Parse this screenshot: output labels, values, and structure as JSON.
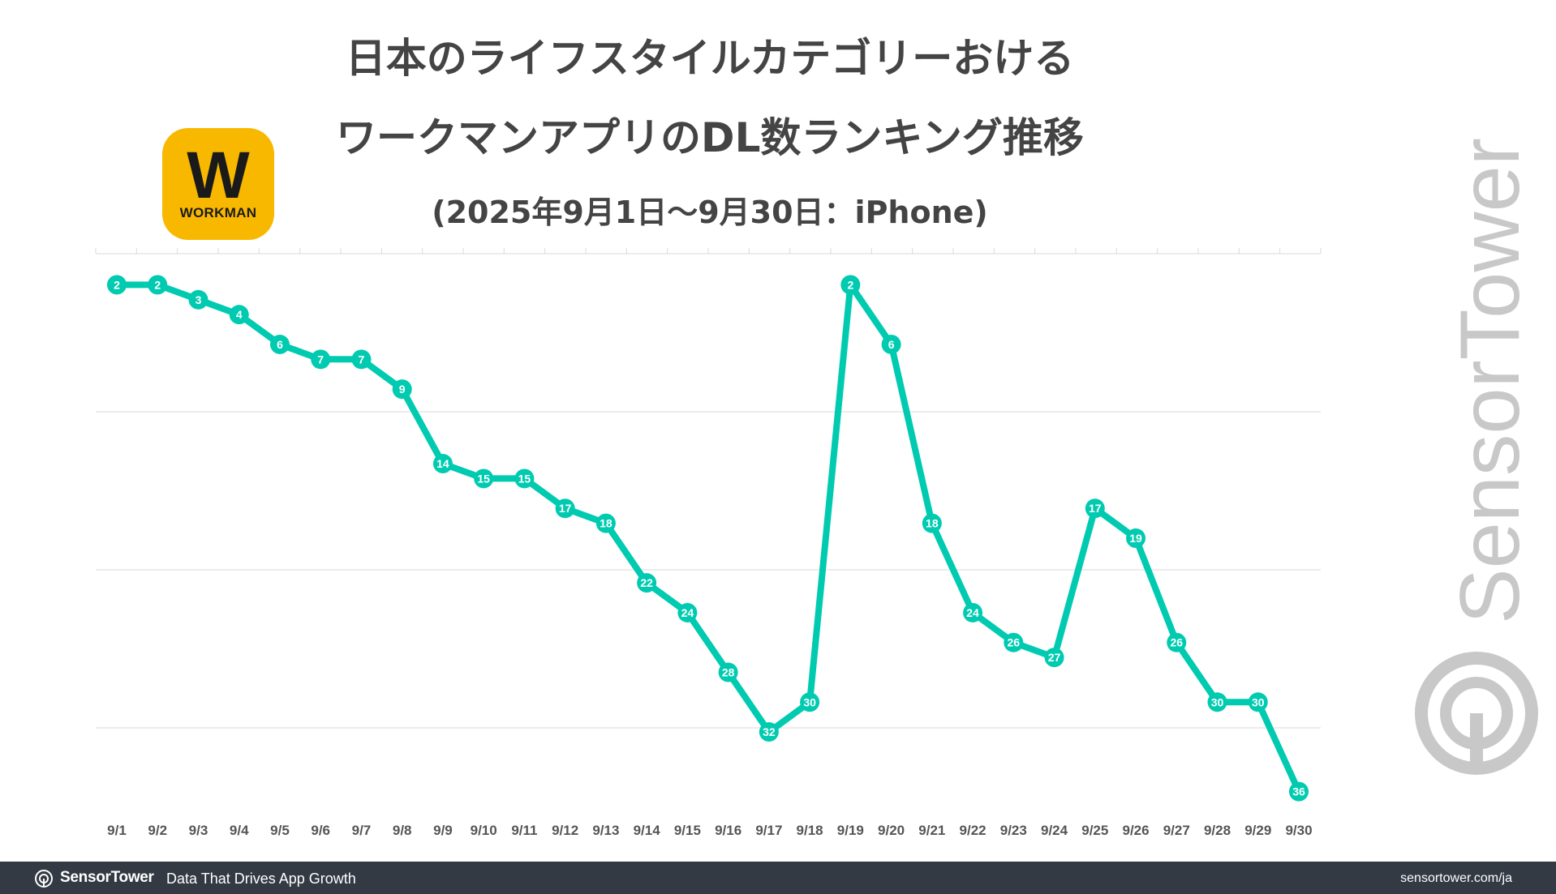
{
  "header": {
    "title_line1": "日本のライフスタイルカテゴリーおける",
    "title_line2": "ワークマンアプリのDL数ランキング推移",
    "subtitle": "(2025年9月1日〜9月30日：iPhone)"
  },
  "logo": {
    "main": "W",
    "text": "WORKMAN",
    "bg_color": "#f9b800"
  },
  "watermark": {
    "text": "SensorTower",
    "color": "#c8c8c8"
  },
  "footer": {
    "brand": "SensorTower",
    "tagline": "Data That Drives App Growth",
    "url": "sensortower.com/ja"
  },
  "chart_data": {
    "type": "line",
    "title": "",
    "xlabel": "",
    "ylabel": "",
    "categories": [
      "9/1",
      "9/2",
      "9/3",
      "9/4",
      "9/5",
      "9/6",
      "9/7",
      "9/8",
      "9/9",
      "9/10",
      "9/11",
      "9/12",
      "9/13",
      "9/14",
      "9/15",
      "9/16",
      "9/17",
      "9/18",
      "9/19",
      "9/20",
      "9/21",
      "9/22",
      "9/23",
      "9/24",
      "9/25",
      "9/26",
      "9/27",
      "9/28",
      "9/29",
      "9/30"
    ],
    "series": [
      {
        "values": [
          2,
          2,
          3,
          4,
          6,
          7,
          7,
          9,
          14,
          15,
          15,
          17,
          18,
          22,
          24,
          28,
          32,
          30,
          2,
          6,
          18,
          24,
          26,
          27,
          17,
          19,
          26,
          30,
          30,
          36
        ]
      }
    ],
    "ylim": [
      1,
      37
    ],
    "y_inverted": true,
    "y_tick_labels_shown": false,
    "data_labels": true,
    "grid": true,
    "legend": "none",
    "line_color": "#00cbb0",
    "grid_color": "#d9d9d9"
  }
}
